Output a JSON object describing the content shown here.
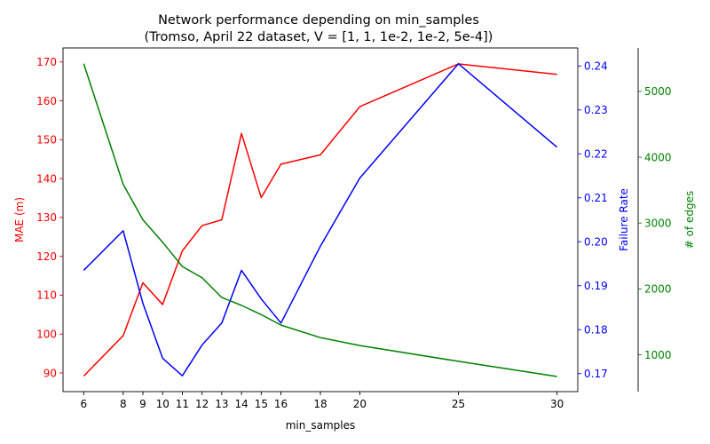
{
  "chart_data": {
    "type": "line",
    "title_line1": "Network performance depending on min_samples",
    "title_line2": "(Tromso, April 22 dataset, V = [1, 1, 1e-2, 1e-2, 5e-4])",
    "xlabel": "min_samples",
    "x": [
      6,
      8,
      9,
      10,
      11,
      12,
      13,
      14,
      15,
      16,
      18,
      20,
      25,
      30
    ],
    "xlim": [
      4.95,
      31.05
    ],
    "xticks": [
      6,
      8,
      9,
      10,
      11,
      12,
      13,
      14,
      15,
      16,
      18,
      20,
      25,
      30
    ],
    "series": [
      {
        "name": "MAE",
        "axis_label": "MAE (m)",
        "color": "#ff0000",
        "values": [
          89.2,
          99.6,
          113.2,
          107.6,
          121.4,
          127.9,
          129.4,
          151.6,
          135.1,
          143.7,
          146.1,
          158.5,
          169.5,
          166.8
        ],
        "ylim": [
          85.2,
          173.6
        ],
        "yticks": [
          90,
          100,
          110,
          120,
          130,
          140,
          150,
          160,
          170
        ],
        "ticklabels": [
          "90",
          "100",
          "110",
          "120",
          "130",
          "140",
          "150",
          "160",
          "170"
        ]
      },
      {
        "name": "Failure Rate",
        "axis_label": "Failure Rate",
        "color": "#0000ff",
        "values": [
          0.1935,
          0.2025,
          0.186,
          0.1735,
          0.1695,
          0.1765,
          0.1815,
          0.1935,
          0.187,
          0.1815,
          0.199,
          0.2145,
          0.2405,
          0.2215
        ],
        "ylim": [
          0.1659,
          0.2441
        ],
        "yticks": [
          0.17,
          0.18,
          0.19,
          0.2,
          0.21,
          0.22,
          0.23,
          0.24
        ],
        "ticklabels": [
          "0.17",
          "0.18",
          "0.19",
          "0.20",
          "0.21",
          "0.22",
          "0.23",
          "0.24"
        ]
      },
      {
        "name": "# of edges",
        "axis_label": "# of edges",
        "color": "#008000",
        "values": [
          5420,
          3590,
          3050,
          2710,
          2340,
          2170,
          1870,
          1750,
          1610,
          1450,
          1260,
          1140,
          900,
          670
        ],
        "ylim": [
          440,
          5660
        ],
        "yticks": [
          1000,
          2000,
          3000,
          4000,
          5000
        ],
        "ticklabels": [
          "1000",
          "2000",
          "3000",
          "4000",
          "5000"
        ]
      }
    ]
  }
}
